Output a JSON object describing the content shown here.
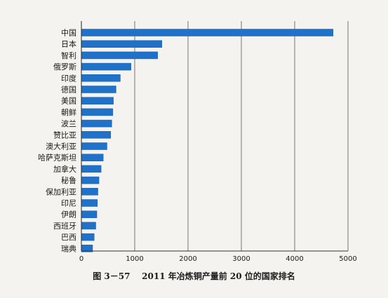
{
  "figure": {
    "number": "图 3－57",
    "caption": "2011 年冶炼铜产量前 20 位的国家排名"
  },
  "colors": {
    "bar": "#1f72c8",
    "bar_edge": "#1760b0",
    "axis": "#333333",
    "grid": "#555555",
    "background": "#f4f3ef"
  },
  "chart_data": {
    "type": "bar",
    "orientation": "horizontal",
    "title": "",
    "xlabel": "",
    "ylabel": "",
    "xlim": [
      0,
      5000
    ],
    "xticks": [
      0,
      1000,
      2000,
      3000,
      4000,
      5000
    ],
    "grid": "vertical",
    "legend": "none",
    "categories": [
      "中国",
      "日本",
      "智利",
      "俄罗斯",
      "印度",
      "德国",
      "美国",
      "朝鲜",
      "波兰",
      "赞比亚",
      "澳大利亚",
      "哈萨克斯坦",
      "加拿大",
      "秘鲁",
      "保加利亚",
      "印尼",
      "伊朗",
      "西班牙",
      "巴西",
      "瑞典"
    ],
    "values": [
      4720,
      1510,
      1430,
      930,
      730,
      650,
      600,
      590,
      570,
      550,
      480,
      410,
      370,
      330,
      310,
      300,
      290,
      270,
      240,
      210
    ]
  }
}
